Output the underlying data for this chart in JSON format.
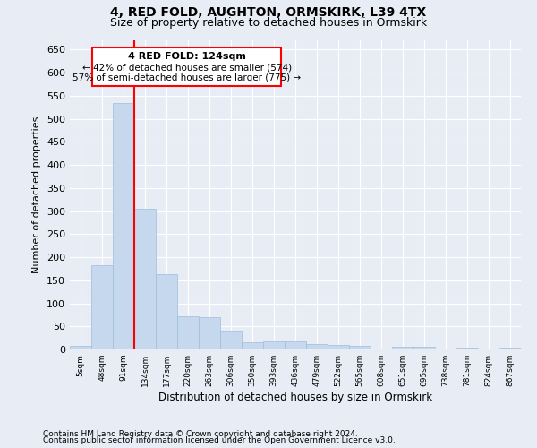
{
  "title1": "4, RED FOLD, AUGHTON, ORMSKIRK, L39 4TX",
  "title2": "Size of property relative to detached houses in Ormskirk",
  "xlabel": "Distribution of detached houses by size in Ormskirk",
  "ylabel": "Number of detached properties",
  "categories": [
    "5sqm",
    "48sqm",
    "91sqm",
    "134sqm",
    "177sqm",
    "220sqm",
    "263sqm",
    "306sqm",
    "350sqm",
    "393sqm",
    "436sqm",
    "479sqm",
    "522sqm",
    "565sqm",
    "608sqm",
    "651sqm",
    "695sqm",
    "738sqm",
    "781sqm",
    "824sqm",
    "867sqm"
  ],
  "values": [
    8,
    183,
    534,
    304,
    163,
    72,
    70,
    40,
    15,
    18,
    18,
    11,
    10,
    7,
    0,
    5,
    6,
    0,
    3,
    0,
    3
  ],
  "bar_color": "#c5d8ed",
  "bar_edge_color": "#a0bdd8",
  "red_line_x": 2.5,
  "red_line_label": "4 RED FOLD: 124sqm",
  "annotation_smaller": "← 42% of detached houses are smaller (574)",
  "annotation_larger": "57% of semi-detached houses are larger (775) →",
  "ylim": [
    0,
    670
  ],
  "yticks": [
    0,
    50,
    100,
    150,
    200,
    250,
    300,
    350,
    400,
    450,
    500,
    550,
    600,
    650
  ],
  "footnote1": "Contains HM Land Registry data © Crown copyright and database right 2024.",
  "footnote2": "Contains public sector information licensed under the Open Government Licence v3.0.",
  "bg_color": "#e8edf5",
  "plot_bg_color": "#e8edf5"
}
